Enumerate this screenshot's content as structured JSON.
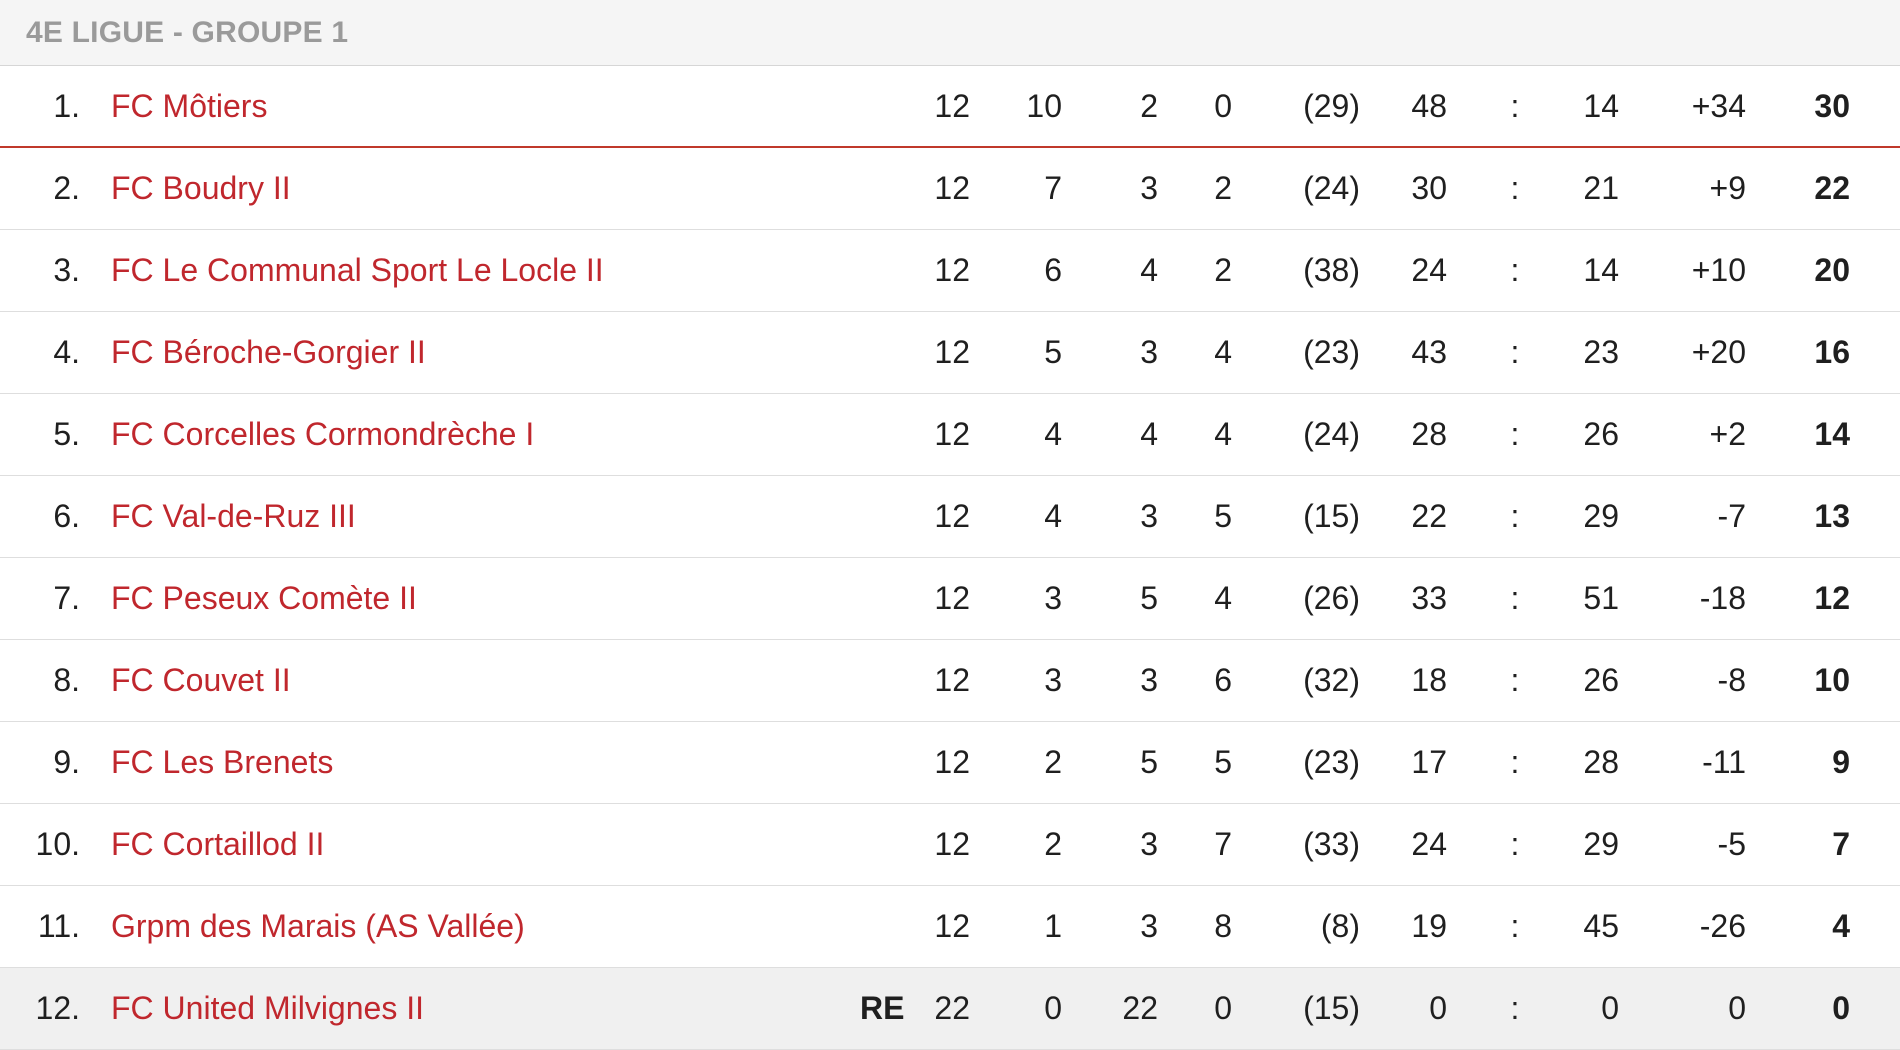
{
  "header": {
    "title": "4E LIGUE - GROUPE 1"
  },
  "colors": {
    "team_link": "#c0272d",
    "leader_separator": "#c0392b",
    "header_text": "#9a9a9a"
  },
  "standings": [
    {
      "rank": "1.",
      "team": "FC Môtiers",
      "flag": "",
      "played": "12",
      "won": "10",
      "draw": "2",
      "lost": "0",
      "fair_play": "(29)",
      "goals_for": "48",
      "sep": ":",
      "goals_against": "14",
      "diff": "+34",
      "points": "30"
    },
    {
      "rank": "2.",
      "team": "FC Boudry II",
      "flag": "",
      "played": "12",
      "won": "7",
      "draw": "3",
      "lost": "2",
      "fair_play": "(24)",
      "goals_for": "30",
      "sep": ":",
      "goals_against": "21",
      "diff": "+9",
      "points": "22"
    },
    {
      "rank": "3.",
      "team": "FC Le Communal Sport Le Locle II",
      "flag": "",
      "played": "12",
      "won": "6",
      "draw": "4",
      "lost": "2",
      "fair_play": "(38)",
      "goals_for": "24",
      "sep": ":",
      "goals_against": "14",
      "diff": "+10",
      "points": "20"
    },
    {
      "rank": "4.",
      "team": "FC Béroche-Gorgier II",
      "flag": "",
      "played": "12",
      "won": "5",
      "draw": "3",
      "lost": "4",
      "fair_play": "(23)",
      "goals_for": "43",
      "sep": ":",
      "goals_against": "23",
      "diff": "+20",
      "points": "16"
    },
    {
      "rank": "5.",
      "team": "FC Corcelles Cormondrèche I",
      "flag": "",
      "played": "12",
      "won": "4",
      "draw": "4",
      "lost": "4",
      "fair_play": "(24)",
      "goals_for": "28",
      "sep": ":",
      "goals_against": "26",
      "diff": "+2",
      "points": "14"
    },
    {
      "rank": "6.",
      "team": "FC Val-de-Ruz III",
      "flag": "",
      "played": "12",
      "won": "4",
      "draw": "3",
      "lost": "5",
      "fair_play": "(15)",
      "goals_for": "22",
      "sep": ":",
      "goals_against": "29",
      "diff": "-7",
      "points": "13"
    },
    {
      "rank": "7.",
      "team": "FC Peseux Comète II",
      "flag": "",
      "played": "12",
      "won": "3",
      "draw": "5",
      "lost": "4",
      "fair_play": "(26)",
      "goals_for": "33",
      "sep": ":",
      "goals_against": "51",
      "diff": "-18",
      "points": "12"
    },
    {
      "rank": "8.",
      "team": "FC Couvet II",
      "flag": "",
      "played": "12",
      "won": "3",
      "draw": "3",
      "lost": "6",
      "fair_play": "(32)",
      "goals_for": "18",
      "sep": ":",
      "goals_against": "26",
      "diff": "-8",
      "points": "10"
    },
    {
      "rank": "9.",
      "team": "FC Les Brenets",
      "flag": "",
      "played": "12",
      "won": "2",
      "draw": "5",
      "lost": "5",
      "fair_play": "(23)",
      "goals_for": "17",
      "sep": ":",
      "goals_against": "28",
      "diff": "-11",
      "points": "9"
    },
    {
      "rank": "10.",
      "team": "FC Cortaillod II",
      "flag": "",
      "played": "12",
      "won": "2",
      "draw": "3",
      "lost": "7",
      "fair_play": "(33)",
      "goals_for": "24",
      "sep": ":",
      "goals_against": "29",
      "diff": "-5",
      "points": "7"
    },
    {
      "rank": "11.",
      "team": "Grpm des Marais (AS Vallée)",
      "flag": "",
      "played": "12",
      "won": "1",
      "draw": "3",
      "lost": "8",
      "fair_play": "(8)",
      "goals_for": "19",
      "sep": ":",
      "goals_against": "45",
      "diff": "-26",
      "points": "4"
    },
    {
      "rank": "12.",
      "team": "FC United Milvignes II",
      "flag": "RE",
      "played": "22",
      "won": "0",
      "draw": "22",
      "lost": "0",
      "fair_play": "(15)",
      "goals_for": "0",
      "sep": ":",
      "goals_against": "0",
      "diff": "0",
      "points": "0"
    }
  ]
}
